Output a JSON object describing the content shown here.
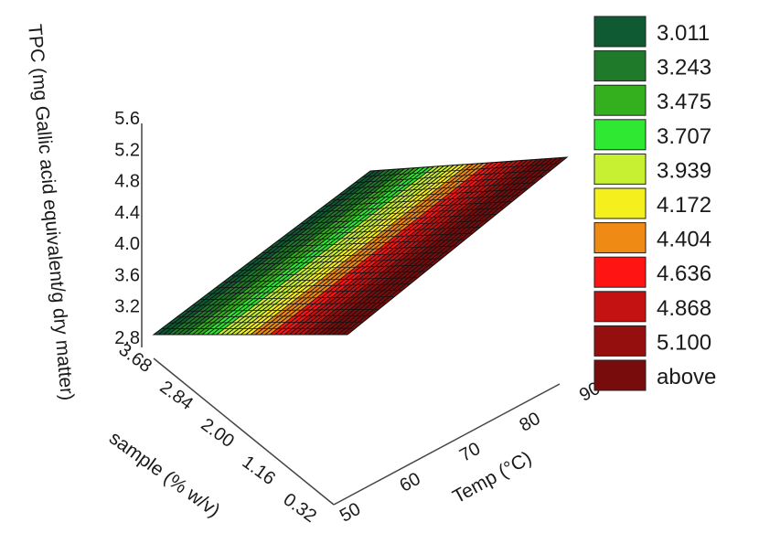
{
  "chart_data": {
    "type": "surface3d",
    "zlabel": "TPC (mg Gallic acid equivalent/g dry matter)",
    "ylabel": "sample (% w/v)",
    "xlabel": "Temp (°C)",
    "z_ticks": [
      "2.8",
      "3.2",
      "3.6",
      "4.0",
      "4.4",
      "4.8",
      "5.2",
      "5.6"
    ],
    "y_ticks": [
      "3.68",
      "2.84",
      "2.00",
      "1.16",
      "0.32"
    ],
    "x_ticks": [
      "50",
      "60",
      "70",
      "80",
      "90"
    ],
    "zlim": [
      2.8,
      5.6
    ],
    "xlim": [
      50,
      90
    ],
    "ylim": [
      0.32,
      3.68
    ],
    "surface": {
      "corners": [
        {
          "temp": 50,
          "sample": 0.32,
          "tpc": 2.8
        },
        {
          "temp": 50,
          "sample": 3.68,
          "tpc": 2.8
        },
        {
          "temp": 90,
          "sample": 0.32,
          "tpc": 5.5
        },
        {
          "temp": 90,
          "sample": 3.68,
          "tpc": 5.5
        }
      ]
    },
    "legend": {
      "placement": "right",
      "entries": [
        {
          "label": "3.011",
          "color": "#0f5a33"
        },
        {
          "label": "3.243",
          "color": "#1f7a2a"
        },
        {
          "label": "3.475",
          "color": "#34b01e"
        },
        {
          "label": "3.707",
          "color": "#2fe832"
        },
        {
          "label": "3.939",
          "color": "#c8f032"
        },
        {
          "label": "4.172",
          "color": "#f5ef1e"
        },
        {
          "label": "4.404",
          "color": "#ef8a14"
        },
        {
          "label": "4.636",
          "color": "#ff1414"
        },
        {
          "label": "4.868",
          "color": "#c41212"
        },
        {
          "label": "5.100",
          "color": "#960f0f"
        },
        {
          "label": "above",
          "color": "#780c0c"
        }
      ]
    }
  }
}
